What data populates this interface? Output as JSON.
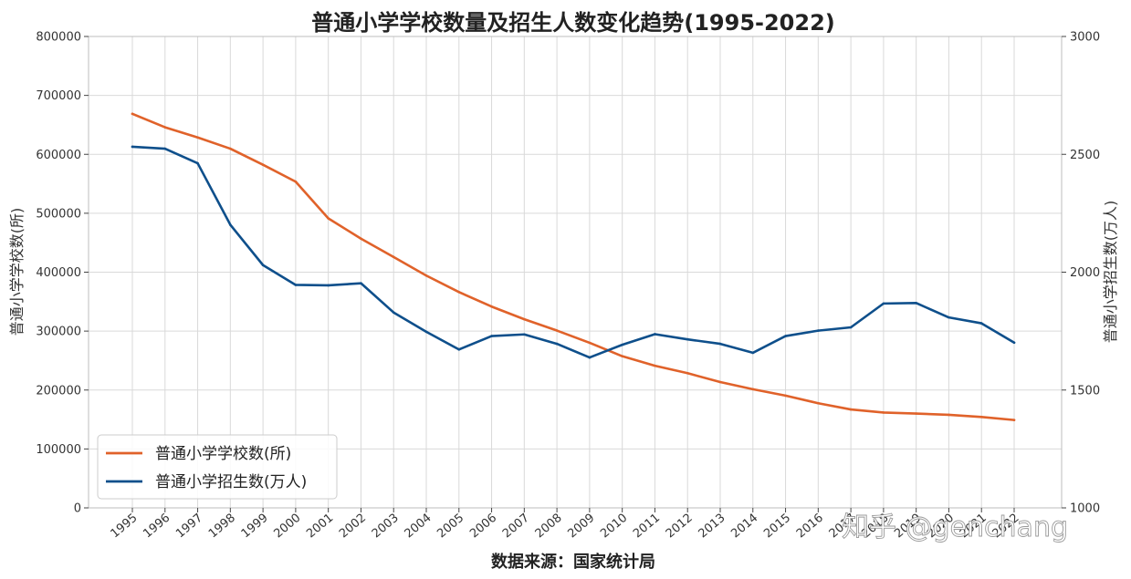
{
  "chart_data": {
    "type": "line",
    "title": "普通小学学校数量及招生人数变化趋势(1995-2022)",
    "xlabel": "数据来源：国家统计局",
    "ylabel_left": "普通小学学校数(所)",
    "ylabel_right": "普通小学招生数(万人)",
    "x": [
      "1995",
      "1996",
      "1997",
      "1998",
      "1999",
      "2000",
      "2001",
      "2002",
      "2003",
      "2004",
      "2005",
      "2006",
      "2007",
      "2008",
      "2009",
      "2010",
      "2011",
      "2012",
      "2013",
      "2014",
      "2015",
      "2016",
      "2017",
      "2018",
      "2019",
      "2020",
      "2021",
      "2022"
    ],
    "ylim_left": [
      0,
      800000
    ],
    "ylim_right": [
      1000,
      3000
    ],
    "yticks_left": [
      "0",
      "100000",
      "200000",
      "300000",
      "400000",
      "500000",
      "600000",
      "700000",
      "800000"
    ],
    "yticks_right": [
      "1000",
      "1500",
      "2000",
      "2500",
      "3000"
    ],
    "grid": true,
    "legend_position": "lower-left",
    "series": [
      {
        "name": "普通小学学校数(所)",
        "axis": "left",
        "color": "#e0622a",
        "values": [
          668700,
          645900,
          628600,
          609600,
          582300,
          553600,
          491300,
          456900,
          425800,
          394200,
          366200,
          341600,
          320100,
          300900,
          280200,
          257400,
          241200,
          228600,
          213500,
          201400,
          190500,
          177600,
          167000,
          161800,
          160100,
          157900,
          154300,
          149100
        ]
      },
      {
        "name": "普通小学招生数(万人)",
        "axis": "right",
        "color": "#0e4f8b",
        "values": [
          2532,
          2524,
          2462,
          2201,
          2030,
          1946,
          1944,
          1953,
          1829,
          1747,
          1672,
          1729,
          1736,
          1696,
          1638,
          1692,
          1737,
          1715,
          1696,
          1658,
          1729,
          1752,
          1766,
          1867,
          1869,
          1808,
          1783,
          1701
        ]
      }
    ]
  },
  "watermark": {
    "text": "知乎 @genchang"
  }
}
